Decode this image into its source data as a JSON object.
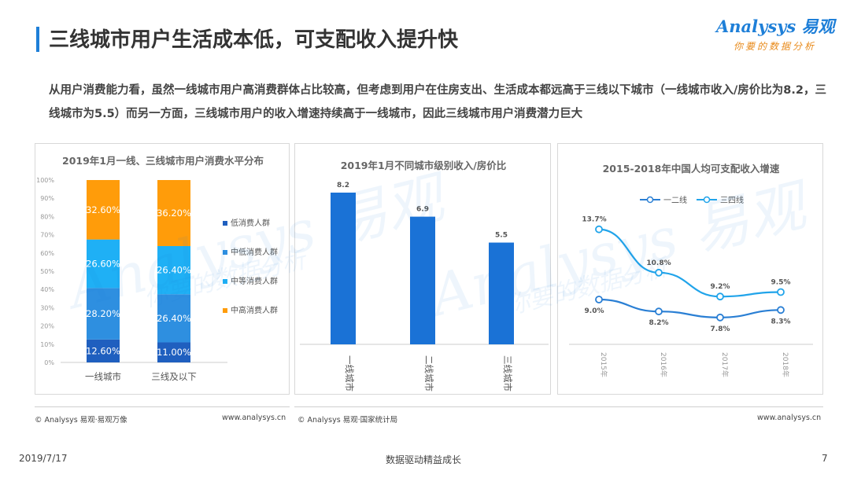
{
  "header": {
    "title": "三线城市用户生活成本低，可支配收入提升快",
    "logo_main": "Analysys 易观",
    "logo_sub": "你要的数据分析"
  },
  "summary": "从用户消费能力看，虽然一线城市用户高消费群体占比较高，但考虑到用户在住房支出、生活成本都远高于三线以下城市（一线城市收入/房价比为8.2，三线城市为5.5）而另一方面，三线城市用户的收入增速持续高于一线城市，因此三线城市用户消费潜力巨大",
  "chart_data": [
    {
      "type": "bar",
      "stacked": true,
      "title": "2019年1月一线、三线城市用户消费水平分布",
      "categories": [
        "一线城市",
        "三线及以下"
      ],
      "ylim": [
        0,
        100
      ],
      "ytick_labels": [
        "0%",
        "10%",
        "20%",
        "30%",
        "40%",
        "50%",
        "60%",
        "70%",
        "80%",
        "90%",
        "100%"
      ],
      "series": [
        {
          "name": "低消费人群",
          "values": [
            12.6,
            11.0
          ],
          "labels": [
            "12.60%",
            "11.00%"
          ],
          "color": "#1f5fbf"
        },
        {
          "name": "中低消费人群",
          "values": [
            28.2,
            26.4
          ],
          "labels": [
            "28.20%",
            "26.40%"
          ],
          "color": "#2e8fe0"
        },
        {
          "name": "中等消费人群",
          "values": [
            26.6,
            26.4
          ],
          "labels": [
            "26.60%",
            "26.40%"
          ],
          "color": "#1fb0f5"
        },
        {
          "name": "中高消费人群",
          "values": [
            32.6,
            36.2
          ],
          "labels": [
            "32.60%",
            "36.20%"
          ],
          "color": "#ff9c0a"
        }
      ],
      "legend_position": "right"
    },
    {
      "type": "bar",
      "title": "2019年1月不同城市级别收入/房价比",
      "categories": [
        "一线城市",
        "二线城市",
        "三线城市"
      ],
      "values": [
        8.2,
        6.9,
        5.5
      ],
      "value_labels": [
        "8.2",
        "6.9",
        "5.5"
      ],
      "ylim": [
        0,
        8.2
      ],
      "color": "#1a72d6"
    },
    {
      "type": "line",
      "title": "2015-2018年中国人均可支配收入增速",
      "x": [
        "2015年",
        "2016年",
        "2017年",
        "2018年"
      ],
      "series": [
        {
          "name": "一二线",
          "values": [
            9.0,
            8.2,
            7.8,
            8.3
          ],
          "labels": [
            "9.0%",
            "8.2%",
            "7.8%",
            "8.3%"
          ],
          "color": "#2a7fd4"
        },
        {
          "name": "三四线",
          "values": [
            13.7,
            10.8,
            9.2,
            9.5
          ],
          "labels": [
            "13.7%",
            "10.8%",
            "9.2%",
            "9.5%"
          ],
          "color": "#21a4ea"
        }
      ],
      "ylim": [
        6,
        15
      ],
      "legend_position": "top"
    }
  ],
  "sources": {
    "left": "© Analysys 易观·易观万像",
    "left_url": "www.analysys.cn",
    "right": "© Analysys 易观·国家统计局",
    "right_url": "www.analysys.cn"
  },
  "footer": {
    "date": "2019/7/17",
    "center": "数据驱动精益成长",
    "page": "7"
  },
  "watermark": {
    "brand": "Analysys 易观",
    "slogan": "你要的数据分析"
  }
}
